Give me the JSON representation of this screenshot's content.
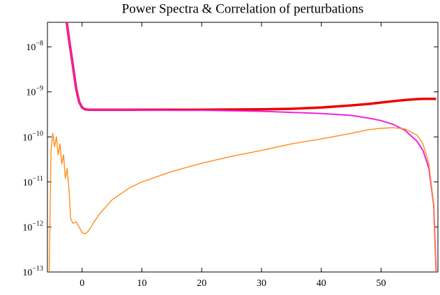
{
  "chart_data": {
    "type": "line",
    "title": "Power Spectra & Correlation of perturbations",
    "log_y": true,
    "x": [
      -5.5,
      -5.2,
      -4.9,
      -4.6,
      -4.3,
      -4,
      -3.7,
      -3.4,
      -3.1,
      -2.8,
      -2.5,
      -2.2,
      -1.9,
      -1.5,
      -1,
      -0.5,
      0,
      0.5,
      1,
      1.5,
      2,
      3,
      5,
      8,
      10,
      15,
      20,
      25,
      30,
      35,
      40,
      45,
      48,
      50,
      52,
      54,
      56,
      57,
      58,
      58.8,
      59.2
    ],
    "series": [
      {
        "name": null,
        "color": "#ee0000",
        "values": [
          null,
          null,
          null,
          null,
          null,
          null,
          null,
          null,
          null,
          5e-08,
          3e-08,
          1.5e-08,
          8e-09,
          3.5e-09,
          1.2e-09,
          6e-10,
          4.5e-10,
          4.1e-10,
          4e-10,
          4e-10,
          4e-10,
          4e-10,
          4e-10,
          4e-10,
          4e-10,
          4e-10,
          4e-10,
          4.05e-10,
          4.1e-10,
          4.2e-10,
          4.5e-10,
          5e-10,
          5.4e-10,
          5.8e-10,
          6.2e-10,
          6.6e-10,
          6.9e-10,
          7e-10,
          7e-10,
          7e-10,
          7e-10
        ]
      },
      {
        "name": null,
        "color": "#ee22dd",
        "values": [
          null,
          null,
          null,
          null,
          null,
          null,
          null,
          null,
          null,
          5e-08,
          3e-08,
          1.5e-08,
          8e-09,
          3.5e-09,
          1.2e-09,
          6e-10,
          4.5e-10,
          4.1e-10,
          4e-10,
          4e-10,
          4e-10,
          4e-10,
          4e-10,
          4e-10,
          3.95e-10,
          3.9e-10,
          3.9e-10,
          3.8e-10,
          3.7e-10,
          3.5e-10,
          3.3e-10,
          3e-10,
          2.6e-10,
          2.3e-10,
          1.9e-10,
          1.4e-10,
          8e-11,
          5e-11,
          2e-11,
          3e-12,
          1e-13
        ]
      },
      {
        "name": null,
        "color": "#ff8c1a",
        "values": [
          1e-13,
          5e-11,
          1.2e-10,
          6e-11,
          1e-10,
          4e-11,
          7e-11,
          2.5e-11,
          4e-11,
          1.2e-11,
          2e-11,
          7e-12,
          1.5e-12,
          1.2e-12,
          1.3e-12,
          1e-12,
          7.5e-13,
          7e-13,
          8e-13,
          1e-12,
          1.3e-12,
          2e-12,
          4e-12,
          7.5e-12,
          1e-11,
          1.7e-11,
          2.6e-11,
          3.7e-11,
          5e-11,
          7e-11,
          9e-11,
          1.2e-10,
          1.45e-10,
          1.55e-10,
          1.6e-10,
          1.5e-10,
          1.1e-10,
          7e-11,
          2.5e-11,
          3e-12,
          1e-13
        ]
      }
    ],
    "xlim": [
      -5.8,
      59.5
    ],
    "xticks": [
      0,
      10,
      20,
      30,
      40,
      50
    ],
    "ylim": [
      1e-13,
      3.5e-08
    ],
    "yticks": [
      {
        "value": 1e-13,
        "label": "10−13"
      },
      {
        "value": 1e-12,
        "label": "10−12"
      },
      {
        "value": 1e-11,
        "label": "10−11"
      },
      {
        "value": 1e-10,
        "label": "10−10"
      },
      {
        "value": 1e-09,
        "label": "10−9"
      },
      {
        "value": 1e-08,
        "label": "10−8"
      }
    ]
  }
}
